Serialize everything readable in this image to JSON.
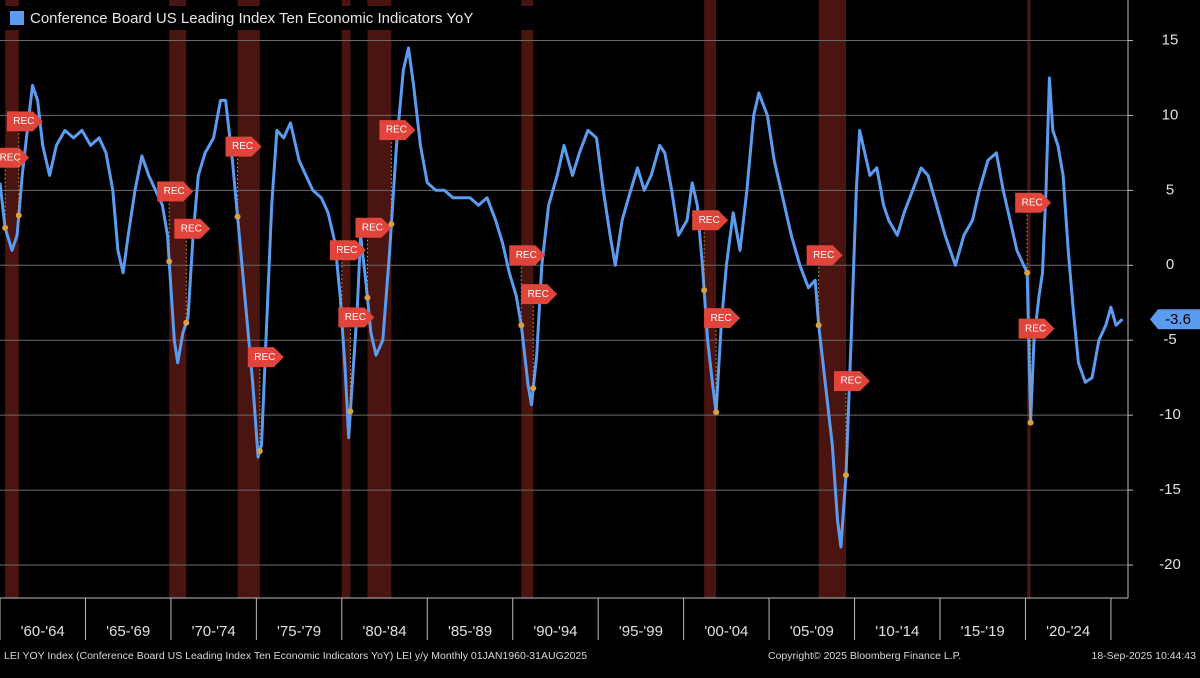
{
  "chart_data": {
    "type": "line",
    "title": "Conference Board US Leading Index Ten Economic Indicators YoY",
    "footer_left": "LEI YOY Index (Conference Board US Leading Index Ten Economic Indicators YoY) LEI y/y  Monthly 01JAN1960-31AUG2025",
    "footer_center": "Copyright© 2025 Bloomberg Finance L.P.",
    "footer_right": "18-Sep-2025 10:44:43",
    "recession_label": "REC",
    "recessions": [
      [
        1960.3,
        1961.1
      ],
      [
        1969.9,
        1970.9
      ],
      [
        1973.9,
        1975.2
      ],
      [
        1980.0,
        1980.5
      ],
      [
        1981.5,
        1982.9
      ],
      [
        1990.5,
        1991.2
      ],
      [
        2001.2,
        2001.9
      ],
      [
        2007.9,
        2009.5
      ],
      [
        2020.1,
        2020.3
      ]
    ],
    "recession_color": "#4a1410",
    "xlim": [
      1960,
      2026
    ],
    "xticks": [
      1960,
      1965,
      1970,
      1975,
      1980,
      1985,
      1990,
      1995,
      2000,
      2005,
      2010,
      2015,
      2020,
      2025
    ],
    "x_period_labels": [
      "'60-'64",
      "'65-'69",
      "'70-'74",
      "'75-'79",
      "'80-'84",
      "'85-'89",
      "'90-'94",
      "'95-'99",
      "'00-'04",
      "'05-'09",
      "'10-'14",
      "'15-'19",
      "'20-'24"
    ],
    "ylim": [
      -22.2,
      17.7
    ],
    "yticks": [
      15,
      10,
      5,
      0,
      -5,
      -10,
      -15,
      -20
    ],
    "grid": true,
    "x": [
      1960.0,
      1960.3,
      1960.7,
      1961.0,
      1961.3,
      1961.6,
      1961.9,
      1962.2,
      1962.5,
      1962.9,
      1963.3,
      1963.8,
      1964.3,
      1964.8,
      1965.3,
      1965.8,
      1966.2,
      1966.6,
      1966.9,
      1967.2,
      1967.5,
      1967.9,
      1968.3,
      1968.7,
      1969.1,
      1969.5,
      1969.8,
      1970.0,
      1970.2,
      1970.4,
      1970.7,
      1971.0,
      1971.3,
      1971.6,
      1972.0,
      1972.5,
      1972.9,
      1973.2,
      1973.6,
      1974.0,
      1974.4,
      1974.8,
      1975.1,
      1975.3,
      1975.6,
      1975.9,
      1976.2,
      1976.6,
      1977.0,
      1977.5,
      1977.9,
      1978.3,
      1978.8,
      1979.2,
      1979.6,
      1979.9,
      1980.2,
      1980.4,
      1980.6,
      1980.9,
      1981.1,
      1981.4,
      1981.7,
      1982.0,
      1982.4,
      1982.8,
      1983.2,
      1983.6,
      1983.9,
      1984.2,
      1984.6,
      1985.0,
      1985.5,
      1986.0,
      1986.5,
      1987.0,
      1987.5,
      1988.0,
      1988.5,
      1989.0,
      1989.4,
      1989.8,
      1990.2,
      1990.5,
      1990.9,
      1991.1,
      1991.4,
      1991.7,
      1992.1,
      1992.6,
      1993.0,
      1993.5,
      1993.9,
      1994.4,
      1994.9,
      1995.3,
      1995.7,
      1996.0,
      1996.4,
      1996.9,
      1997.3,
      1997.7,
      1998.1,
      1998.6,
      1998.9,
      1999.3,
      1999.7,
      2000.2,
      2000.5,
      2000.8,
      2001.1,
      2001.4,
      2001.7,
      2001.9,
      2002.2,
      2002.5,
      2002.9,
      2003.3,
      2003.7,
      2004.1,
      2004.4,
      2004.9,
      2005.3,
      2005.8,
      2006.3,
      2006.8,
      2007.3,
      2007.7,
      2007.9,
      2008.3,
      2008.7,
      2009.0,
      2009.2,
      2009.5,
      2009.8,
      2010.1,
      2010.3,
      2010.6,
      2010.9,
      2011.3,
      2011.7,
      2012.0,
      2012.5,
      2012.9,
      2013.4,
      2013.9,
      2014.3,
      2014.8,
      2015.3,
      2015.9,
      2016.4,
      2016.9,
      2017.3,
      2017.8,
      2018.3,
      2018.7,
      2019.1,
      2019.5,
      2019.9,
      2020.1,
      2020.3,
      2020.5,
      2020.8,
      2021.0,
      2021.2,
      2021.4,
      2021.6,
      2021.9,
      2022.2,
      2022.5,
      2022.8,
      2023.1,
      2023.5,
      2023.9,
      2024.3,
      2024.7,
      2025.0,
      2025.3,
      2025.67
    ],
    "series": [
      {
        "name": "Conference Board US Leading Index Ten Economic Indicators YoY",
        "color": "#5b9cf0",
        "values": [
          5.5,
          2.5,
          1.0,
          2.0,
          6,
          9,
          12,
          11,
          8,
          6,
          8,
          9,
          8.5,
          9,
          8,
          8.5,
          7.5,
          5,
          1,
          -0.5,
          2,
          5,
          7.3,
          6,
          5,
          4,
          2,
          -1.5,
          -5,
          -6.5,
          -4.5,
          -3.5,
          2,
          6,
          7.5,
          8.5,
          11,
          11,
          7,
          2,
          -3,
          -8,
          -12.8,
          -12,
          -4,
          4,
          9,
          8.5,
          9.5,
          7,
          6,
          5,
          4.5,
          3.5,
          1.5,
          -2,
          -7,
          -11.5,
          -8,
          -3,
          2,
          -1,
          -4.5,
          -6,
          -5,
          1,
          8,
          13,
          14.5,
          12,
          8,
          5.5,
          5,
          5,
          4.5,
          4.5,
          4.5,
          4,
          4.5,
          3,
          1.5,
          -0.5,
          -2,
          -4,
          -8,
          -9.3,
          -6,
          0,
          4,
          6,
          8,
          6,
          7.5,
          9,
          8.5,
          5,
          2,
          0,
          3,
          5,
          6.5,
          5,
          6,
          8,
          7.5,
          5,
          2,
          3,
          5.5,
          4,
          0,
          -5,
          -8,
          -9.8,
          -4,
          0,
          3.5,
          1,
          5,
          10,
          11.5,
          10,
          7,
          4.5,
          2,
          0,
          -1.5,
          -1,
          -4,
          -8,
          -12,
          -17,
          -18.8,
          -14,
          -5,
          5,
          9,
          7.5,
          6,
          6.5,
          4,
          3,
          2,
          3.5,
          5,
          6.5,
          6,
          4,
          2,
          0,
          2,
          3,
          5,
          7,
          7.5,
          5,
          3,
          1,
          0,
          -0.5,
          -10.5,
          -5,
          -2,
          -0.5,
          5,
          12.5,
          9,
          8,
          6,
          1,
          -3,
          -6.5,
          -7.8,
          -7.5,
          -5,
          -4,
          -2.8,
          -4,
          -3.6
        ]
      }
    ]
  }
}
